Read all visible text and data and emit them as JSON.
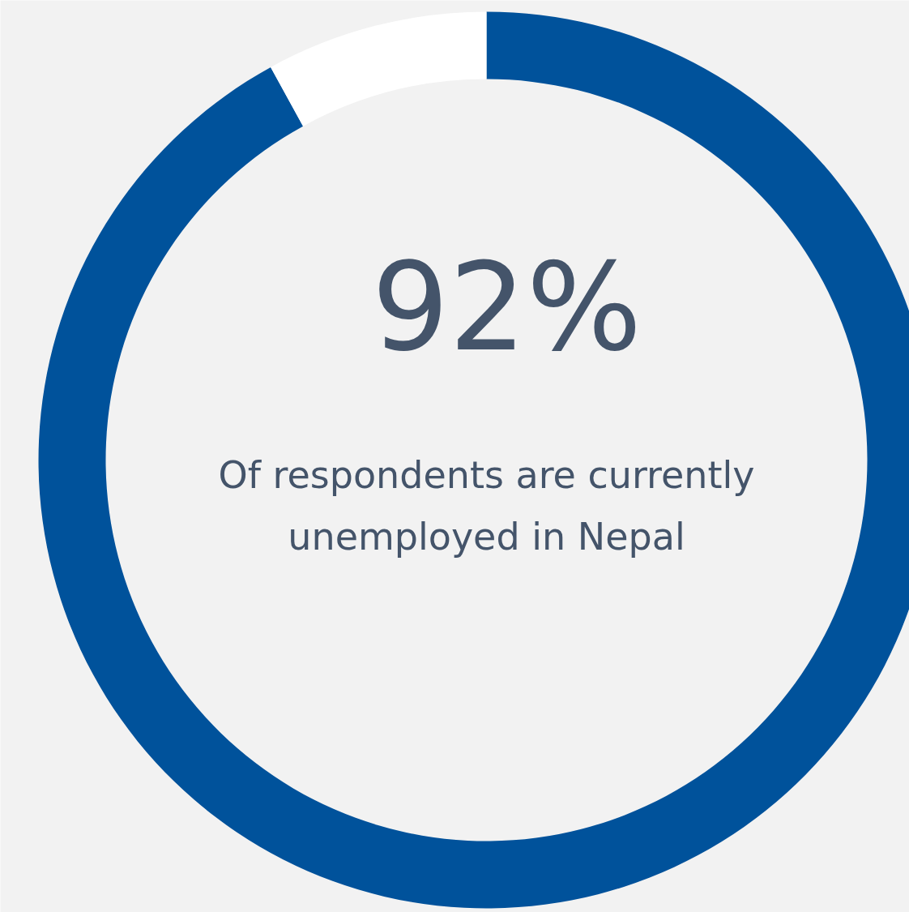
{
  "chart_data": {
    "type": "donut",
    "categories": [
      null,
      null
    ],
    "values": [
      92,
      8
    ],
    "colors": [
      "#00529b",
      "#ffffff"
    ],
    "value_labels": [
      "92%",
      null
    ],
    "annotations": [
      "Of respondents are currently unemployed in Nepal"
    ]
  }
}
